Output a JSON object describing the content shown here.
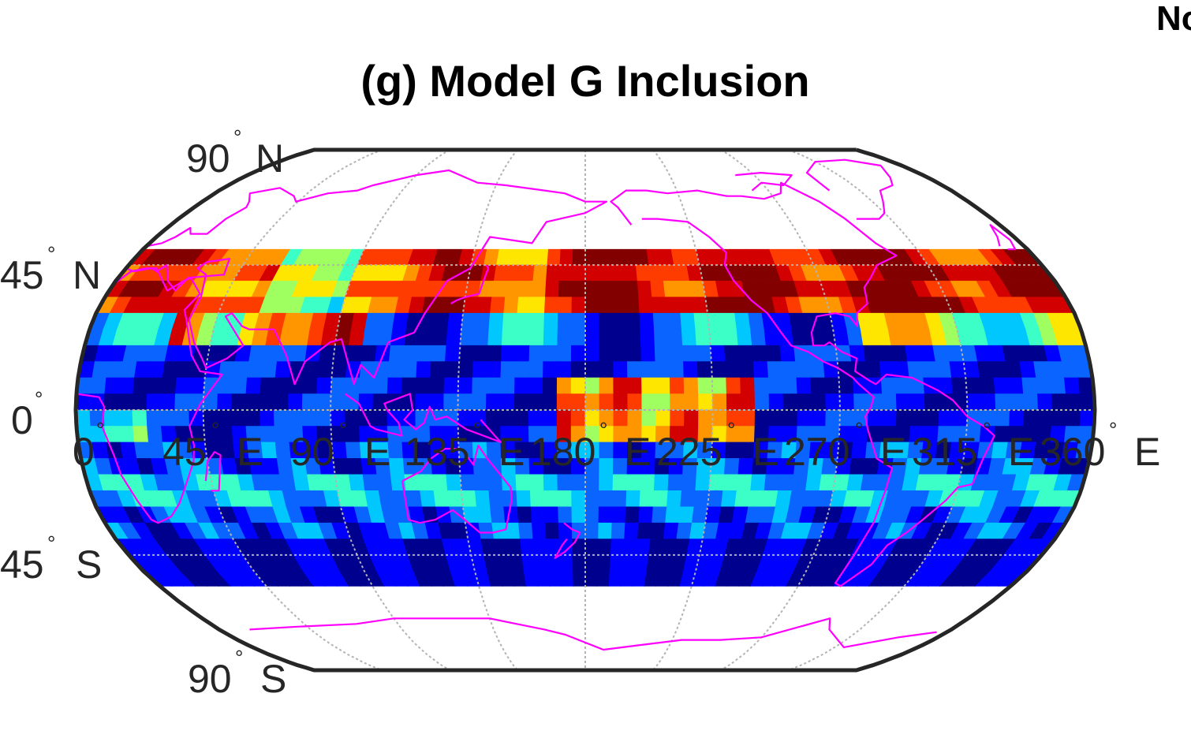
{
  "figure": {
    "title": "(g) Model G Inclusion",
    "corner_text": "No"
  },
  "map": {
    "projection": "robinson",
    "coastline_color": "#ff00ff",
    "grid_color": "#b3b3b3",
    "frame_color": "#262626",
    "colormap": [
      "#00008f",
      "#0000ff",
      "#0a64ff",
      "#00c8ff",
      "#3cffc8",
      "#a0ff60",
      "#ffe600",
      "#ff9600",
      "#ff3c00",
      "#d20000",
      "#820000"
    ],
    "lat_labels": [
      {
        "deg": "°",
        "value": "90",
        "hemi": "N"
      },
      {
        "deg": "°",
        "value": "45",
        "hemi": "N"
      },
      {
        "deg": "°",
        "value": "0",
        "hemi": ""
      },
      {
        "deg": "°",
        "value": "45",
        "hemi": "S"
      },
      {
        "deg": "°",
        "value": "90",
        "hemi": "S"
      }
    ],
    "lon_labels": [
      {
        "value": "0",
        "deg": "°"
      },
      {
        "value": "45",
        "deg": "°",
        "hemi": "E"
      },
      {
        "value": "90",
        "deg": "°",
        "hemi": "E"
      },
      {
        "value": "135",
        "deg": "°",
        "hemi": "E"
      },
      {
        "value": "180",
        "deg": "°",
        "hemi": "E"
      },
      {
        "value": "225",
        "deg": "°",
        "hemi": "E"
      },
      {
        "value": "270",
        "deg": "°",
        "hemi": "E"
      },
      {
        "value": "315",
        "deg": "°",
        "hemi": "E"
      },
      {
        "value": "360",
        "deg": "°",
        "hemi": "E"
      }
    ]
  }
}
